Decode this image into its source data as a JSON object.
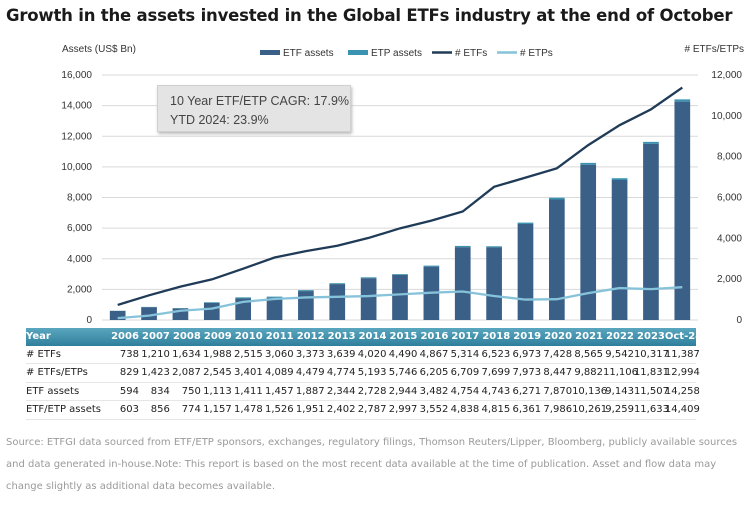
{
  "title": "Growth in the assets invested in the Global ETFs industry at the end of October",
  "annotation": {
    "line1": "10 Year ETF/ETP CAGR: 17.9%",
    "line2": "YTD 2024: 23.9%"
  },
  "colors": {
    "etf_assets": "#3b6088",
    "etp_assets": "#3a93b0",
    "etfs_line": "#1f3b57",
    "etps_line": "#86c3da"
  },
  "chart_data": {
    "type": "bar",
    "title": "Growth in the assets invested in the Global ETFs industry at the end of October",
    "ylabel": "Assets (US$ Bn)",
    "y2label": "# ETFs/ETPs",
    "ylim": [
      0,
      16000
    ],
    "y2lim": [
      0,
      12000
    ],
    "yticks": [
      "0",
      "2,000",
      "4,000",
      "6,000",
      "8,000",
      "10,000",
      "12,000",
      "14,000",
      "16,000"
    ],
    "y2ticks": [
      "0",
      "2,000",
      "4,000",
      "6,000",
      "8,000",
      "10,000",
      "12,000"
    ],
    "legend": [
      "ETF assets",
      "ETP assets",
      "# ETFs",
      "# ETPs"
    ],
    "legend_position": "top",
    "categories": [
      "2006",
      "2007",
      "2008",
      "2009",
      "2010",
      "2011",
      "2012",
      "2013",
      "2014",
      "2015",
      "2016",
      "2017",
      "2018",
      "2019",
      "2020",
      "2021",
      "2022",
      "2023",
      "Oct-24"
    ],
    "series": [
      {
        "name": "ETF assets",
        "type": "bar",
        "values": [
          594,
          834,
          750,
          1113,
          1411,
          1457,
          1887,
          2344,
          2728,
          2944,
          3482,
          4754,
          4743,
          6271,
          7870,
          10136,
          9143,
          11507,
          14258
        ]
      },
      {
        "name": "ETF/ETP assets",
        "type": "bar",
        "values": [
          603,
          856,
          774,
          1157,
          1478,
          1526,
          1951,
          2402,
          2787,
          2997,
          3552,
          4838,
          4815,
          6361,
          7986,
          10261,
          9259,
          11633,
          14409
        ]
      },
      {
        "name": "# ETFs",
        "type": "line",
        "axis": "right",
        "values": [
          738,
          1210,
          1634,
          1988,
          2515,
          3060,
          3373,
          3639,
          4020,
          4490,
          4867,
          5314,
          6523,
          6973,
          7428,
          8565,
          9542,
          10317,
          11387
        ]
      },
      {
        "name": "# ETPs",
        "type": "line",
        "axis": "right",
        "values": [
          91,
          213,
          453,
          557,
          886,
          1029,
          1106,
          1135,
          1173,
          1256,
          1338,
          1395,
          1176,
          1000,
          1019,
          1317,
          1564,
          1514,
          1607
        ]
      }
    ]
  },
  "table": {
    "header": "Year",
    "rows": [
      {
        "label": "# ETFs",
        "values": [
          "738",
          "1,210",
          "1,634",
          "1,988",
          "2,515",
          "3,060",
          "3,373",
          "3,639",
          "4,020",
          "4,490",
          "4,867",
          "5,314",
          "6,523",
          "6,973",
          "7,428",
          "8,565",
          "9,542",
          "10,317",
          "11,387"
        ]
      },
      {
        "label": "# ETFs/ETPs",
        "values": [
          "829",
          "1,423",
          "2,087",
          "2,545",
          "3,401",
          "4,089",
          "4,479",
          "4,774",
          "5,193",
          "5,746",
          "6,205",
          "6,709",
          "7,699",
          "7,973",
          "8,447",
          "9,882",
          "11,106",
          "11,831",
          "12,994"
        ]
      },
      {
        "label": "ETF assets",
        "values": [
          "594",
          "834",
          "750",
          "1,113",
          "1,411",
          "1,457",
          "1,887",
          "2,344",
          "2,728",
          "2,944",
          "3,482",
          "4,754",
          "4,743",
          "6,271",
          "7,870",
          "10,136",
          "9,143",
          "11,507",
          "14,258"
        ]
      },
      {
        "label": "ETF/ETP assets",
        "values": [
          "603",
          "856",
          "774",
          "1,157",
          "1,478",
          "1,526",
          "1,951",
          "2,402",
          "2,787",
          "2,997",
          "3,552",
          "4,838",
          "4,815",
          "6,361",
          "7,986",
          "10,261",
          "9,259",
          "11,633",
          "14,409"
        ]
      }
    ]
  },
  "source": "Source: ETFGI data sourced from ETF/ETP sponsors, exchanges, regulatory filings, Thomson Reuters/Lipper, Bloomberg, publicly available sources and data generated in-house.Note: This report is based on the most recent data available at the time of publication. Asset and flow data may change slightly as additional data becomes available."
}
